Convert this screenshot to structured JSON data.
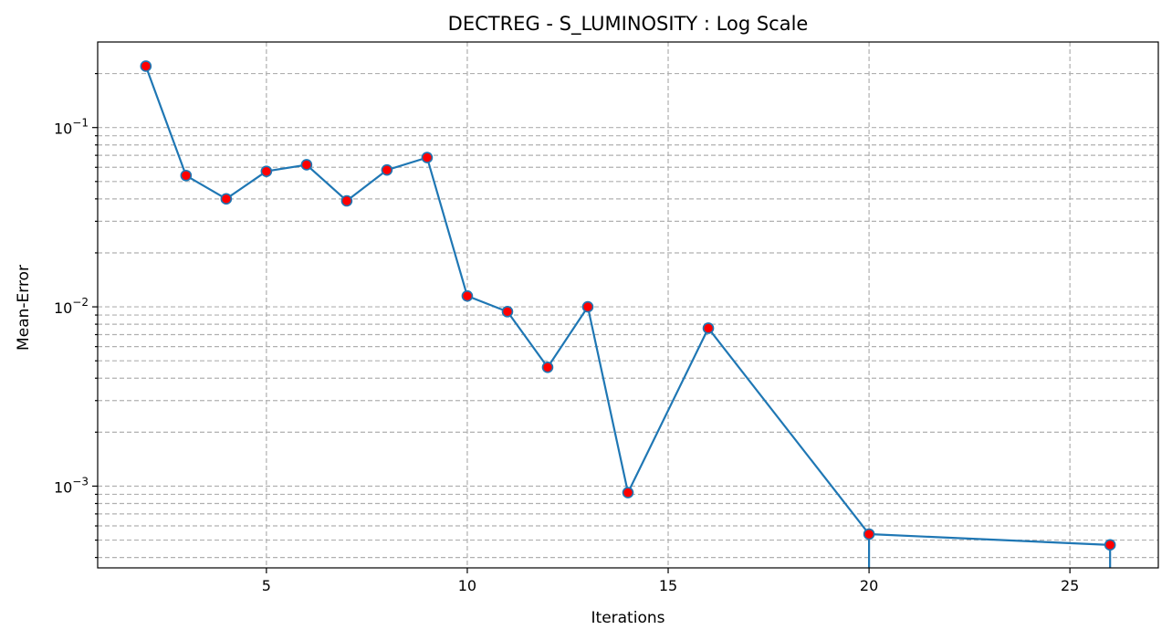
{
  "chart_data": {
    "type": "line",
    "title": "DECTREG - S_LUMINOSITY : Log Scale",
    "xlabel": "Iterations",
    "ylabel": "Mean-Error",
    "yscale": "log",
    "grid": true,
    "xlim": [
      0.8,
      27.2
    ],
    "ylim": [
      0.00035,
      0.3
    ],
    "x_ticks": [
      5,
      10,
      15,
      20,
      25
    ],
    "y_ticks": [
      {
        "value": 0.001,
        "base": "10",
        "exp": "−3"
      },
      {
        "value": 0.01,
        "base": "10",
        "exp": "−2"
      },
      {
        "value": 0.1,
        "base": "10",
        "exp": "−1"
      }
    ],
    "series": [
      {
        "color": "#1f77b4",
        "marker_color": "#ff0000",
        "x": [
          2,
          3,
          4,
          5,
          6,
          7,
          8,
          9,
          10,
          11,
          12,
          13,
          14,
          16,
          20,
          26
        ],
        "y": [
          0.22,
          0.054,
          0.04,
          0.057,
          0.062,
          0.039,
          0.058,
          0.068,
          0.0115,
          0.0094,
          0.0046,
          0.01,
          0.00092,
          0.0076,
          0.00054,
          0.00047
        ]
      }
    ],
    "drop_lines_x": [
      20,
      26
    ]
  }
}
